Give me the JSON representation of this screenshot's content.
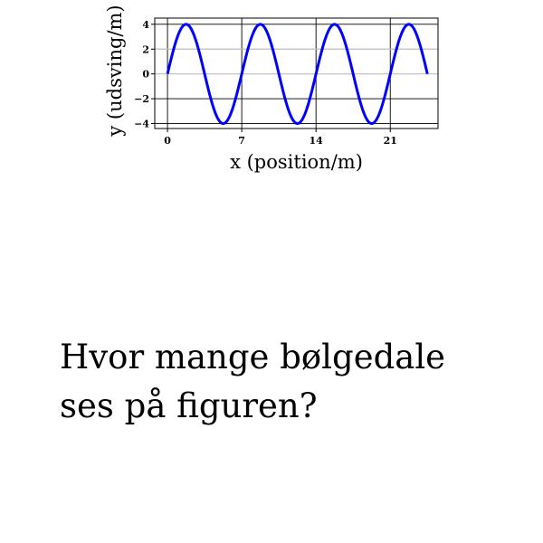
{
  "chart_data": {
    "type": "line",
    "xlabel": "x (position/m)",
    "ylabel": "y (udsving/m)",
    "xticks": [
      0,
      7,
      14,
      21
    ],
    "yticks": [
      -4,
      -2,
      0,
      2,
      4
    ],
    "xlim": [
      -1.2,
      25.5
    ],
    "ylim": [
      -4.4,
      4.5
    ],
    "grid": true,
    "series": [
      {
        "amplitude": 4,
        "wavelength": 7,
        "x_start": 0,
        "x_end": 24.5,
        "color": "#0000ff"
      }
    ]
  },
  "question": "Hvor mange bølgedale ses på figuren?"
}
